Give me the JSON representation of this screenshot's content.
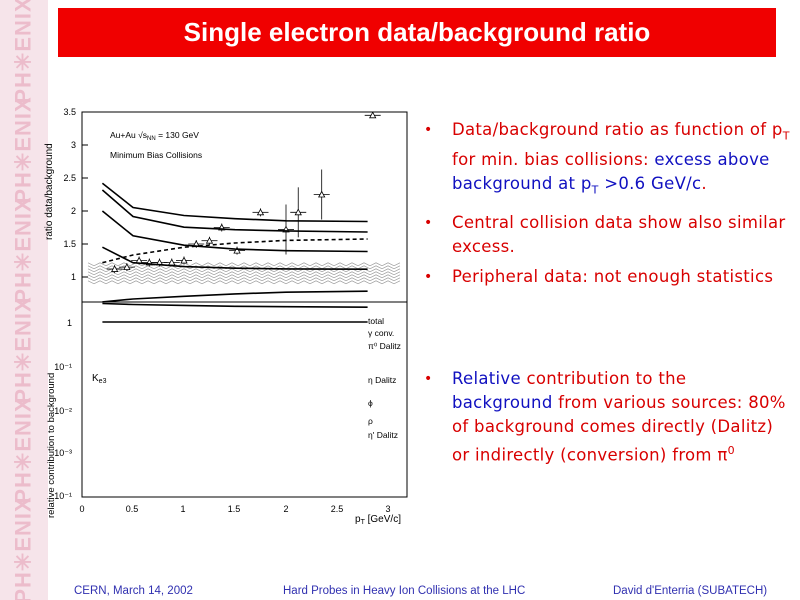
{
  "sidebar": {
    "watermark_text": "PH✳ENIX"
  },
  "title": "Single electron data/background ratio",
  "bullets": {
    "b1": {
      "part1": "Data/background ratio as function of p",
      "part1_sub": "T",
      "part2": " for min. bias collisions: ",
      "part3": "excess above background at p",
      "part3_sub": "T",
      "part4": " >0.6 GeV/c",
      "part5": "."
    },
    "b2": {
      "text": "Central collision data show also similar excess."
    },
    "b3": {
      "text": "Peripheral data: not enough statistics"
    },
    "b4": {
      "part1": "Relative",
      "part2": " contribution to the ",
      "part3": "background",
      "part4": " from various sources: 80% of background comes directly (Dalitz) or indirectly (conversion) from ",
      "part5": "π",
      "part5_sup": "0"
    }
  },
  "top_plot": {
    "ylabel": "ratio data/background",
    "yticks": [
      "1",
      "1.5",
      "2",
      "2.5",
      "3",
      "3.5"
    ],
    "legend_line1": "Au+Au √s",
    "legend_line1_sub": "NN",
    "legend_line1_end": " = 130 GeV",
    "legend_line2": "Minimum Bias Collisions"
  },
  "bottom_plot": {
    "ylabel": "relative contribution to background",
    "yticks": [
      "1",
      "10⁻¹",
      "10⁻²",
      "10⁻³",
      "10⁻¹"
    ],
    "xticks": [
      "0",
      "0.5",
      "1",
      "1.5",
      "2",
      "2.5",
      "3"
    ],
    "xlabel": "p",
    "xlabel_sub": "T",
    "xlabel_unit": " [GeV/c]",
    "curve_labels": [
      "total",
      "γ conv.",
      "π⁰ Dalitz",
      "η Dalitz",
      "ϕ",
      "ρ",
      "η' Dalitz"
    ],
    "ke3_label": "K",
    "ke3_sub": "e3"
  },
  "chart_data": [
    {
      "type": "scatter",
      "title": "",
      "xlabel": "",
      "ylabel": "ratio data/background",
      "ylim": [
        0.8,
        3.5
      ],
      "x": [
        0.32,
        0.44,
        0.56,
        0.66,
        0.76,
        0.88,
        1.0,
        1.12,
        1.25,
        1.37,
        1.52,
        1.75,
        2.0,
        2.12,
        2.35,
        2.85
      ],
      "y": [
        1.12,
        1.15,
        1.25,
        1.22,
        1.22,
        1.22,
        1.25,
        1.5,
        1.55,
        1.75,
        1.4,
        1.98,
        1.72,
        1.98,
        2.25,
        3.45
      ],
      "grid": false
    },
    {
      "type": "line",
      "title": "",
      "xlabel": "p_T [GeV/c]",
      "ylabel": "relative contribution to background",
      "xlim": [
        0,
        3
      ],
      "yscale": "log",
      "series": [
        {
          "name": "total",
          "values": [
            1.0,
            1.0,
            1.0,
            1.0,
            1.0,
            1.0
          ]
        },
        {
          "name": "γ conv.",
          "values": [
            0.38,
            0.4,
            0.42,
            0.44,
            0.45,
            0.46
          ]
        },
        {
          "name": "π⁰ Dalitz",
          "values": [
            0.35,
            0.3,
            0.26,
            0.23,
            0.21,
            0.2
          ]
        },
        {
          "name": "η Dalitz",
          "values": [
            0.02,
            0.045,
            0.055,
            0.06,
            0.062,
            0.063
          ]
        },
        {
          "name": "ϕ",
          "values": [
            0.003,
            0.011,
            0.018,
            0.022,
            0.024,
            0.025
          ]
        },
        {
          "name": "ρ",
          "values": [
            0.001,
            0.004,
            0.007,
            0.008,
            0.0085,
            0.009
          ]
        },
        {
          "name": "η' Dalitz",
          "values": [
            0.0007,
            0.0025,
            0.0038,
            0.0045,
            0.005,
            0.0052
          ]
        },
        {
          "name": "Ke3",
          "values": [
            0.045,
            0.03,
            0.02,
            0.016,
            0.014,
            0.013
          ]
        }
      ],
      "x": [
        0.2,
        0.5,
        1.0,
        1.5,
        2.0,
        2.8
      ]
    }
  ]
}
